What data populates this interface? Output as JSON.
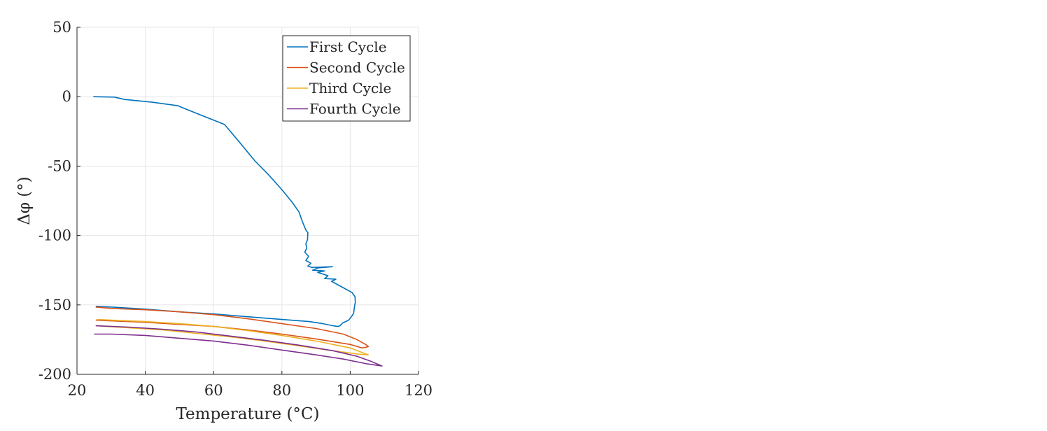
{
  "chart_data": {
    "type": "line",
    "xlabel": "Temperature (°C)",
    "ylabel": "Δφ  (°)",
    "xlim": [
      20,
      120
    ],
    "ylim": [
      -200,
      50
    ],
    "xticks": [
      20,
      40,
      60,
      80,
      100,
      120
    ],
    "xtick_labels": [
      "20",
      "40",
      "60",
      "80",
      "100",
      "120"
    ],
    "yticks": [
      50,
      0,
      -50,
      -100,
      -150,
      -200
    ],
    "ytick_labels": [
      "50",
      "0",
      "-50",
      "-100",
      "-150",
      "-200"
    ],
    "grid": true,
    "legend_position": "top-right",
    "series": [
      {
        "name": "First Cycle",
        "color": "#0072BD",
        "points": [
          [
            24.8,
            0
          ],
          [
            31.0,
            -0.3
          ],
          [
            34.0,
            -2
          ],
          [
            42,
            -4
          ],
          [
            49.5,
            -6.5
          ],
          [
            55,
            -12
          ],
          [
            63.2,
            -20
          ],
          [
            68,
            -34
          ],
          [
            72,
            -46
          ],
          [
            76,
            -56
          ],
          [
            80,
            -67
          ],
          [
            83,
            -76
          ],
          [
            85,
            -83
          ],
          [
            86,
            -90
          ],
          [
            87,
            -96
          ],
          [
            87.6,
            -98
          ],
          [
            87.5,
            -103
          ],
          [
            87.0,
            -106
          ],
          [
            87.3,
            -109
          ],
          [
            86.7,
            -112
          ],
          [
            87.8,
            -115
          ],
          [
            87.0,
            -118
          ],
          [
            88.5,
            -120
          ],
          [
            87.6,
            -122
          ],
          [
            88.7,
            -123
          ],
          [
            94.8,
            -122.5
          ],
          [
            90.5,
            -123.4
          ],
          [
            89.0,
            -125
          ],
          [
            92.5,
            -125.5
          ],
          [
            90.5,
            -126.5
          ],
          [
            93.5,
            -129
          ],
          [
            92.5,
            -131
          ],
          [
            95.8,
            -131.5
          ],
          [
            94.5,
            -133
          ],
          [
            96.0,
            -135
          ],
          [
            97.5,
            -137
          ],
          [
            100.5,
            -141
          ],
          [
            101.4,
            -144
          ],
          [
            101.5,
            -148
          ],
          [
            101.2,
            -152
          ],
          [
            101.0,
            -156
          ],
          [
            100.5,
            -158
          ],
          [
            99.5,
            -161
          ],
          [
            97.8,
            -163
          ],
          [
            97.0,
            -165
          ],
          [
            96.3,
            -165.5
          ],
          [
            95,
            -165
          ],
          [
            92,
            -163.5
          ],
          [
            88,
            -162
          ],
          [
            80,
            -160.5
          ],
          [
            70,
            -158.5
          ],
          [
            60,
            -156.5
          ],
          [
            50,
            -155
          ],
          [
            40,
            -153
          ],
          [
            30,
            -151.5
          ],
          [
            25.5,
            -151
          ]
        ]
      },
      {
        "name": "Second Cycle",
        "color": "#D95319",
        "points": [
          [
            25.5,
            -151.5
          ],
          [
            30,
            -152.5
          ],
          [
            40,
            -153.5
          ],
          [
            50,
            -155
          ],
          [
            60,
            -157
          ],
          [
            70,
            -160
          ],
          [
            80,
            -163.5
          ],
          [
            90,
            -167
          ],
          [
            98,
            -171
          ],
          [
            102,
            -175
          ],
          [
            104.5,
            -178.5
          ],
          [
            105.3,
            -180
          ],
          [
            104.6,
            -180.5
          ],
          [
            103.5,
            -181
          ],
          [
            100,
            -178.5
          ],
          [
            90,
            -174.5
          ],
          [
            80,
            -171
          ],
          [
            70,
            -168
          ],
          [
            60,
            -165.5
          ],
          [
            50,
            -164
          ],
          [
            40,
            -162.5
          ],
          [
            30,
            -161.5
          ],
          [
            25.5,
            -161
          ]
        ]
      },
      {
        "name": "Third Cycle",
        "color": "#EDB120",
        "points": [
          [
            25.8,
            -160.5
          ],
          [
            30,
            -161
          ],
          [
            40,
            -162
          ],
          [
            50,
            -163.5
          ],
          [
            60,
            -165.5
          ],
          [
            70,
            -168.5
          ],
          [
            80,
            -172
          ],
          [
            90,
            -176
          ],
          [
            100,
            -181
          ],
          [
            105.3,
            -186
          ],
          [
            102.5,
            -185.5
          ],
          [
            95,
            -183
          ],
          [
            85,
            -179.5
          ],
          [
            75,
            -176
          ],
          [
            65,
            -173
          ],
          [
            55,
            -170.5
          ],
          [
            45,
            -168
          ],
          [
            35,
            -166.5
          ],
          [
            25.5,
            -165
          ]
        ]
      },
      {
        "name": "Fourth Cycle",
        "color": "#7E2F8E",
        "points": [
          [
            25.5,
            -165
          ],
          [
            35,
            -166
          ],
          [
            45,
            -167.5
          ],
          [
            55,
            -169.5
          ],
          [
            65,
            -172.5
          ],
          [
            75,
            -175.5
          ],
          [
            85,
            -179
          ],
          [
            95,
            -183
          ],
          [
            102,
            -187
          ],
          [
            106,
            -190.5
          ],
          [
            109.3,
            -194
          ],
          [
            105,
            -192.5
          ],
          [
            98,
            -189
          ],
          [
            90,
            -186
          ],
          [
            80,
            -182.5
          ],
          [
            70,
            -179
          ],
          [
            60,
            -176
          ],
          [
            50,
            -174
          ],
          [
            40,
            -172
          ],
          [
            30,
            -171
          ],
          [
            25,
            -171
          ]
        ]
      }
    ]
  }
}
